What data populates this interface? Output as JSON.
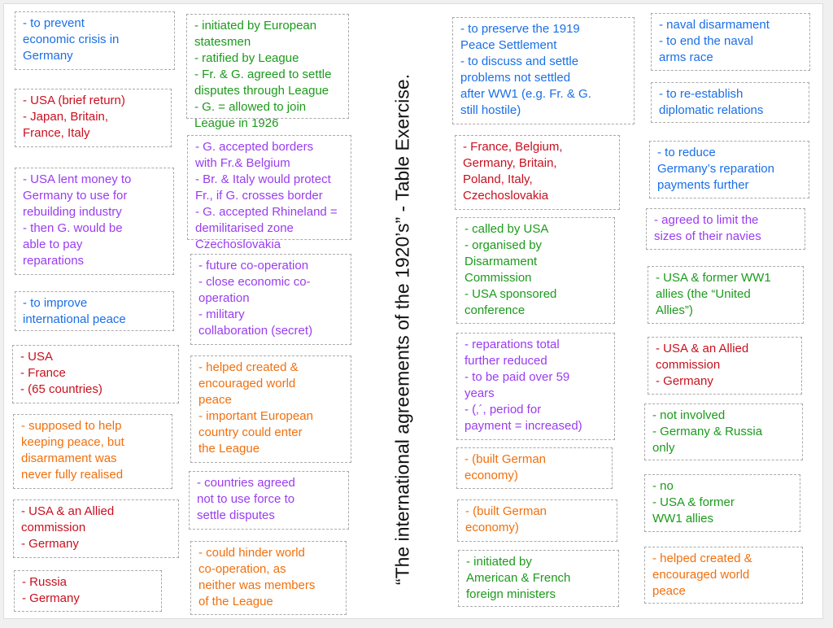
{
  "title": "“The international agreements of the 1920’s” - Table Exercise.",
  "colors": {
    "blue": "#1a6fe6",
    "red": "#c8101e",
    "purple": "#9a3cf0",
    "green": "#1c9a1c",
    "orange": "#f0700e"
  },
  "boxes": [
    {
      "color": "blue",
      "text": "- to prevent\neconomic crisis in\nGermany"
    },
    {
      "color": "red",
      "text": "- USA (brief return)\n- Japan, Britain,\nFrance, Italy"
    },
    {
      "color": "purple",
      "text": "- USA lent money to\nGermany to use for\nrebuilding industry\n- then G. would be\nable to pay\nreparations"
    },
    {
      "color": "blue",
      "text": "- to improve\ninternational peace"
    },
    {
      "color": "red",
      "text": "- USA\n- France\n- (65 countries)"
    },
    {
      "color": "orange",
      "text": "- supposed to help\nkeeping peace, but\ndisarmament was\nnever fully realised"
    },
    {
      "color": "red",
      "text": "- USA & an Allied\ncommission\n- Germany"
    },
    {
      "color": "red",
      "text": "- Russia\n- Germany"
    },
    {
      "color": "green",
      "text": "- initiated by European\nstatesmen\n- ratified by League\n- Fr. & G. agreed to settle\ndisputes through League\n- G. = allowed to join\nLeague in 1926"
    },
    {
      "color": "purple",
      "text": "- G. accepted borders\nwith Fr.& Belgium\n- Br. & Italy would protect\nFr., if G. crosses border\n- G. accepted Rhineland =\ndemilitarised zone\nCzechoslovakia"
    },
    {
      "color": "purple",
      "text": "- future co-operation\n- close economic co-\noperation\n- military\ncollaboration (secret)"
    },
    {
      "color": "orange",
      "text": "- helped created &\nencouraged world\npeace\n- important European\ncountry could enter\nthe League"
    },
    {
      "color": "purple",
      "text": "- countries agreed\nnot to use force to\nsettle disputes"
    },
    {
      "color": "orange",
      "text": "- could hinder world\nco-operation, as\nneither was members\nof the League"
    },
    {
      "color": "blue",
      "text": "- to preserve the 1919\nPeace Settlement\n- to discuss and settle\nproblems not settled\nafter WW1 (e.g. Fr. & G.\nstill hostile)"
    },
    {
      "color": "red",
      "text": "- France, Belgium,\nGermany, Britain,\nPoland, Italy,\nCzechoslovakia"
    },
    {
      "color": "green",
      "text": "- called by USA\n- organised by\nDisarmament\nCommission\n- USA sponsored\nconference"
    },
    {
      "color": "purple",
      "text": "- reparations total\nfurther reduced\n- to be paid over 59\nyears\n- (‚´, period for\npayment = increased)"
    },
    {
      "color": "orange",
      "text": "- (built German\neconomy)"
    },
    {
      "color": "orange",
      "text": "- (built German\neconomy)"
    },
    {
      "color": "green",
      "text": "- initiated by\nAmerican & French\nforeign ministers"
    },
    {
      "color": "blue",
      "text": "- naval disarmament\n- to end the naval\narms race"
    },
    {
      "color": "blue",
      "text": "- to re-establish\ndiplomatic relations"
    },
    {
      "color": "blue",
      "text": "- to reduce\nGermany’s reparation\npayments further"
    },
    {
      "color": "purple",
      "text": "- agreed to limit the\nsizes of their navies"
    },
    {
      "color": "green",
      "text": "- USA & former WW1\nallies (the “United\nAllies”)"
    },
    {
      "color": "red",
      "text": "- USA & an Allied\ncommission\n- Germany"
    },
    {
      "color": "green",
      "text": "- not involved\n- Germany & Russia\nonly"
    },
    {
      "color": "green",
      "text": "- no\n- USA & former\nWW1 allies"
    },
    {
      "color": "orange",
      "text": "- helped created &\nencouraged world\npeace"
    }
  ]
}
